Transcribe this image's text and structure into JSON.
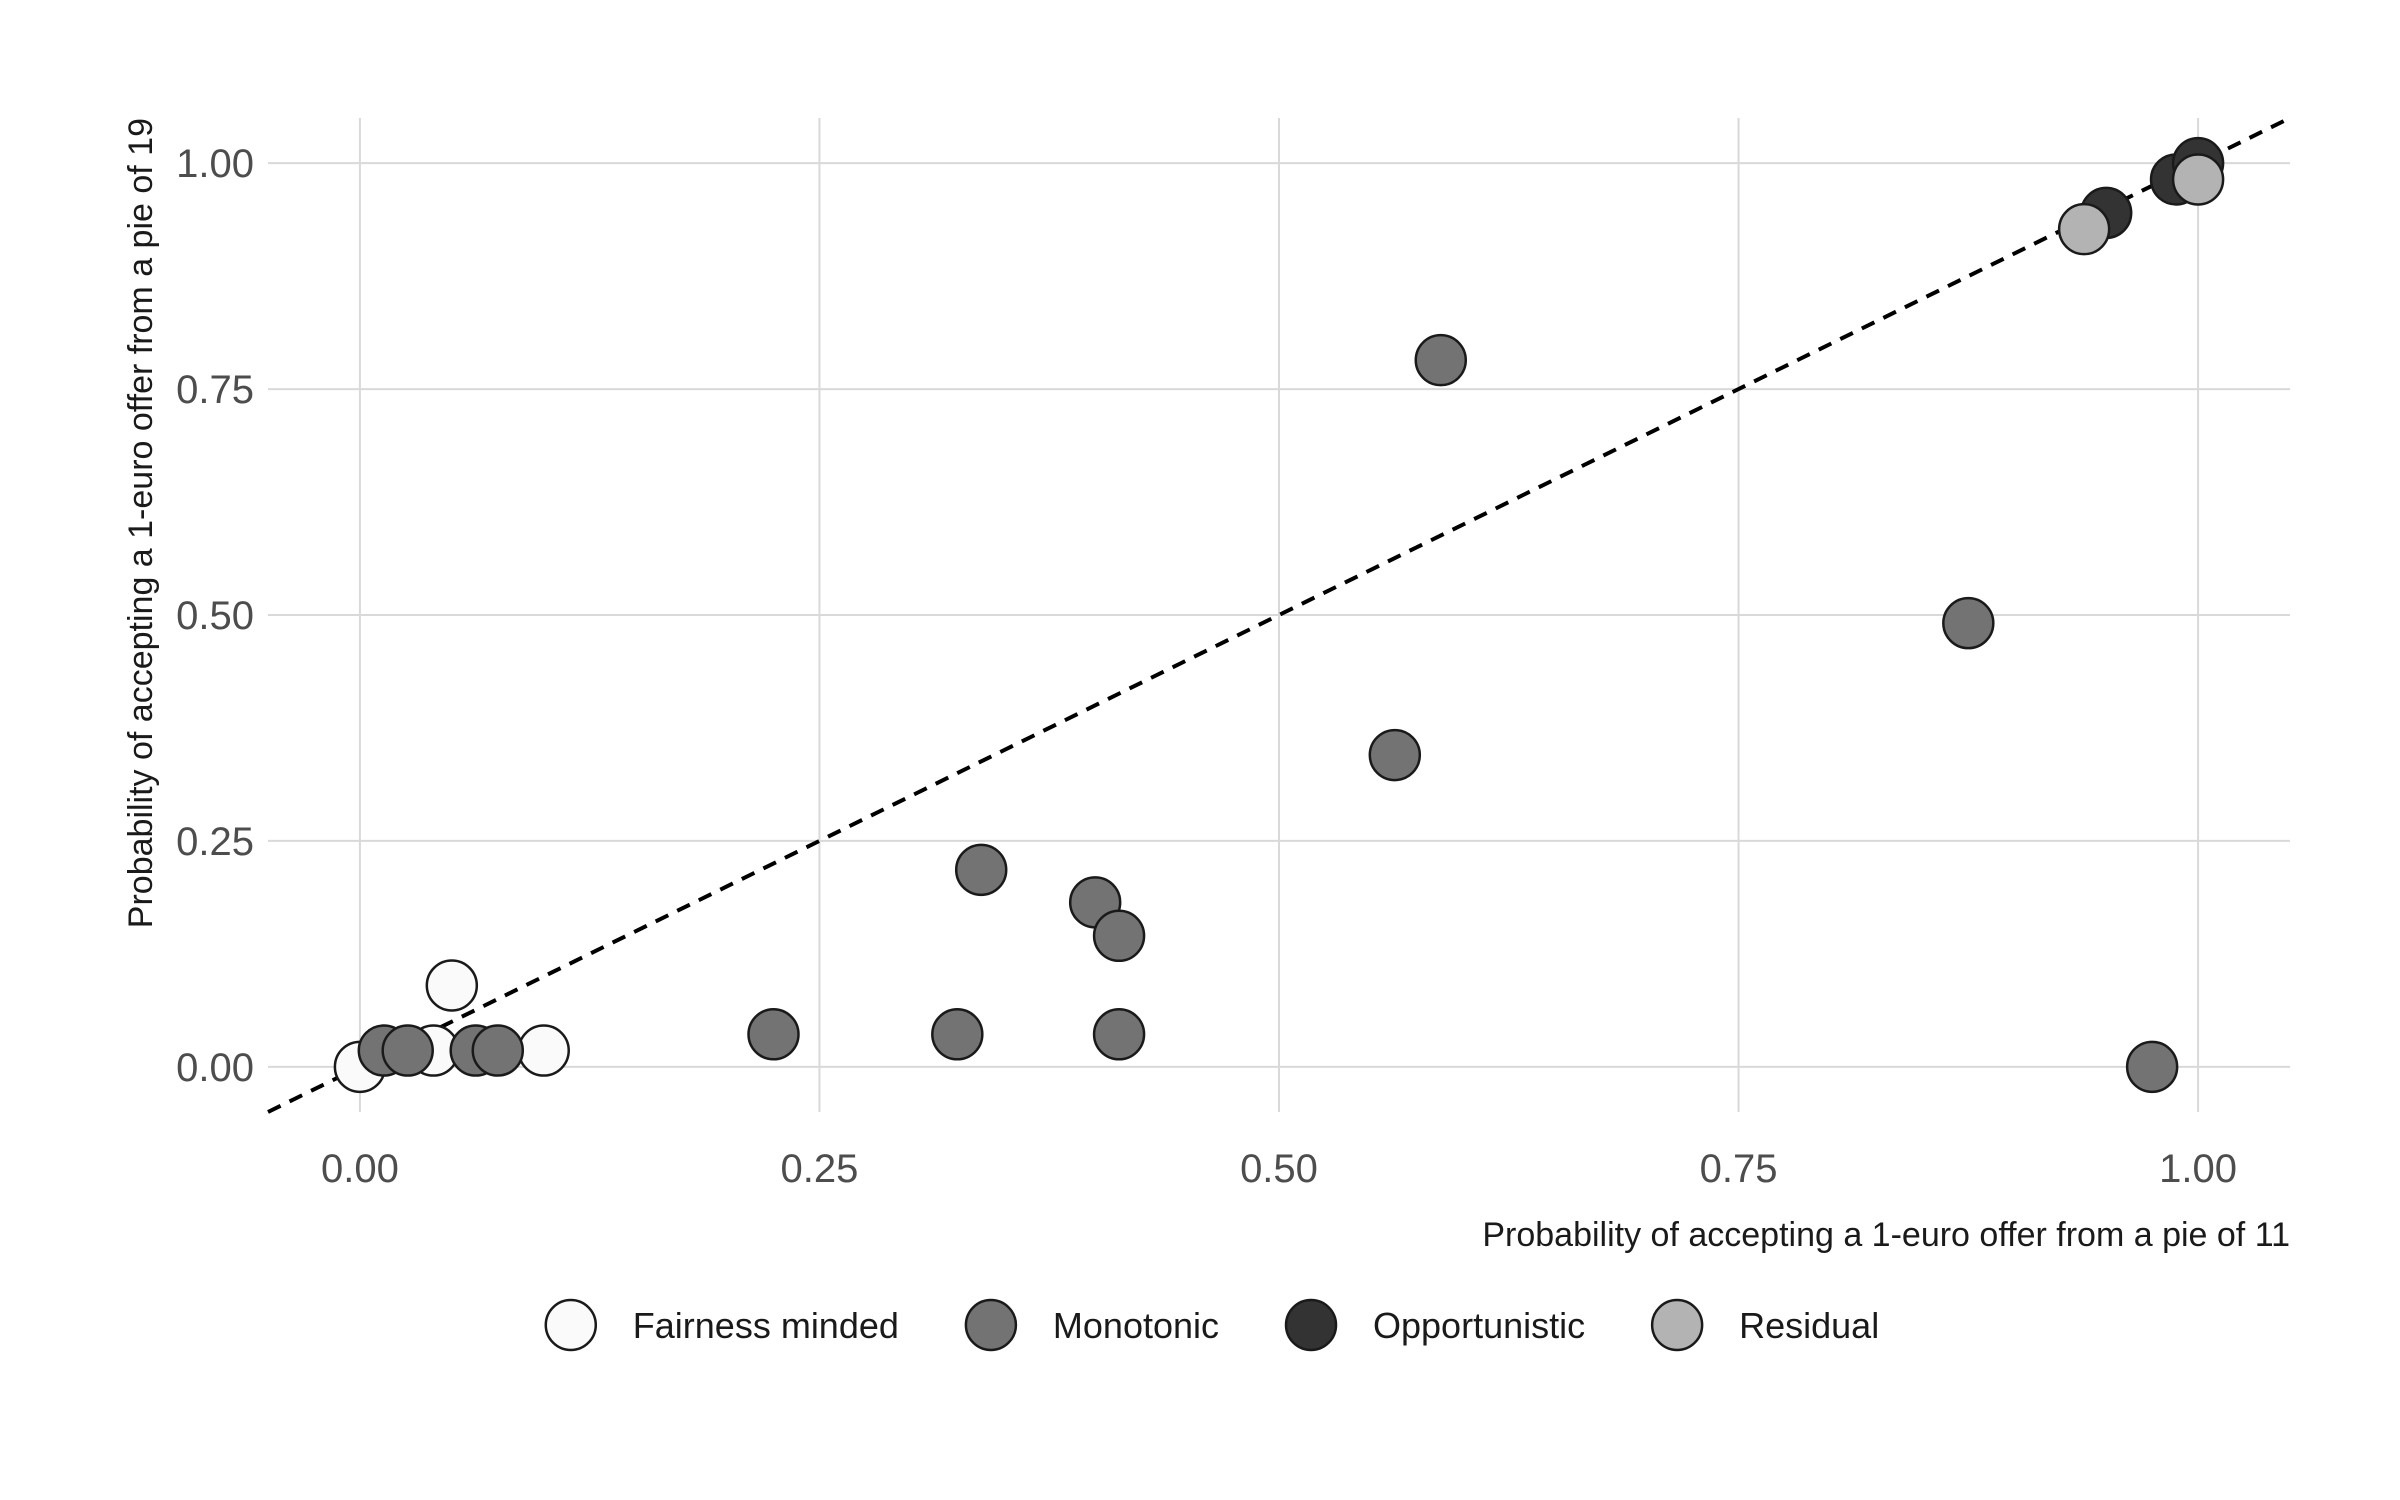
{
  "chart_data": {
    "type": "scatter",
    "title": "",
    "xlabel": "Probability of accepting a 1-euro offer from a pie of 11",
    "ylabel": "Probability of accepting a 1-euro offer from a pie of 19",
    "xlim": [
      -0.05,
      1.05
    ],
    "ylim": [
      -0.05,
      1.05
    ],
    "x_ticks": [
      0,
      0.25,
      0.5,
      0.75,
      1
    ],
    "x_tick_labels": [
      "0.00",
      "0.25",
      "0.50",
      "0.75",
      "1.00"
    ],
    "y_ticks": [
      0,
      0.25,
      0.5,
      0.75,
      1
    ],
    "y_tick_labels": [
      "0.00",
      "0.25",
      "0.50",
      "0.75",
      "1.00"
    ],
    "grid": true,
    "legend_position": "bottom",
    "reference_line": {
      "type": "identity",
      "style": "dashed"
    },
    "series": [
      {
        "name": "Fairness minded",
        "color": "#fafafa",
        "points": [
          {
            "x": 0.0,
            "y": 0.0
          },
          {
            "x": 0.05,
            "y": 0.09
          },
          {
            "x": 0.04,
            "y": 0.018
          },
          {
            "x": 0.1,
            "y": 0.018
          }
        ]
      },
      {
        "name": "Monotonic",
        "color": "#737373",
        "points": [
          {
            "x": 0.013,
            "y": 0.018
          },
          {
            "x": 0.026,
            "y": 0.018
          },
          {
            "x": 0.063,
            "y": 0.018
          },
          {
            "x": 0.075,
            "y": 0.018
          },
          {
            "x": 0.225,
            "y": 0.036
          },
          {
            "x": 0.325,
            "y": 0.036
          },
          {
            "x": 0.338,
            "y": 0.218
          },
          {
            "x": 0.4,
            "y": 0.182
          },
          {
            "x": 0.413,
            "y": 0.145
          },
          {
            "x": 0.413,
            "y": 0.036
          },
          {
            "x": 0.563,
            "y": 0.345
          },
          {
            "x": 0.588,
            "y": 0.782
          },
          {
            "x": 0.875,
            "y": 0.491
          },
          {
            "x": 0.975,
            "y": 0.0
          }
        ]
      },
      {
        "name": "Opportunistic",
        "color": "#333333",
        "points": [
          {
            "x": 0.95,
            "y": 0.945
          },
          {
            "x": 0.988,
            "y": 0.982
          },
          {
            "x": 1.0,
            "y": 1.0
          }
        ]
      },
      {
        "name": "Residual",
        "color": "#b3b3b3",
        "points": [
          {
            "x": 0.938,
            "y": 0.927
          },
          {
            "x": 1.0,
            "y": 0.982
          }
        ]
      }
    ]
  }
}
